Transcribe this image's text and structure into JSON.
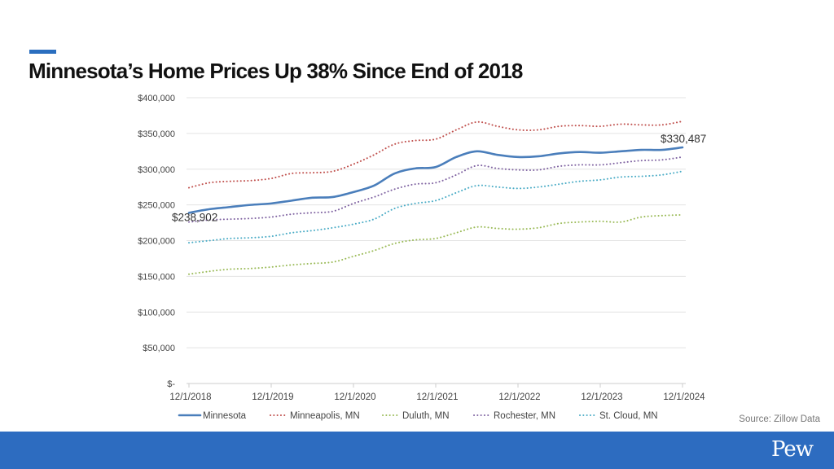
{
  "title": "Minnesota’s Home Prices Up 38% Since End of 2018",
  "source": "Source: Zillow Data",
  "logo": "Pew",
  "chart_data": {
    "type": "line",
    "title": "",
    "xlabel": "",
    "ylabel": "",
    "ylim": [
      0,
      400000
    ],
    "y_ticks": [
      "$-",
      "$50,000",
      "$100,000",
      "$150,000",
      "$200,000",
      "$250,000",
      "$300,000",
      "$350,000",
      "$400,000"
    ],
    "y_tick_values": [
      0,
      50000,
      100000,
      150000,
      200000,
      250000,
      300000,
      350000,
      400000
    ],
    "x_ticks": [
      "12/1/2018",
      "12/1/2019",
      "12/1/2020",
      "12/1/2021",
      "12/1/2022",
      "12/1/2023",
      "12/1/2024"
    ],
    "x": [
      "12/1/2018",
      "3/1/2019",
      "6/1/2019",
      "9/1/2019",
      "12/1/2019",
      "3/1/2020",
      "6/1/2020",
      "9/1/2020",
      "12/1/2020",
      "3/1/2021",
      "6/1/2021",
      "9/1/2021",
      "12/1/2021",
      "3/1/2022",
      "6/1/2022",
      "9/1/2022",
      "12/1/2022",
      "3/1/2023",
      "6/1/2023",
      "9/1/2023",
      "12/1/2023",
      "3/1/2024",
      "6/1/2024",
      "9/1/2024",
      "12/1/2024"
    ],
    "grid": true,
    "legend": "bottom",
    "series": [
      {
        "name": "Minnesota",
        "color": "#4a7ebb",
        "style": "solid",
        "values": [
          238902,
          244000,
          247000,
          250000,
          252000,
          256000,
          260000,
          261000,
          268000,
          277000,
          294000,
          301000,
          303000,
          317000,
          325000,
          320000,
          317000,
          318000,
          322000,
          324000,
          323000,
          325000,
          327000,
          327000,
          330487
        ]
      },
      {
        "name": "Minneapolis, MN",
        "color": "#c0504d",
        "style": "dotted",
        "values": [
          274000,
          281000,
          283000,
          284000,
          287000,
          294000,
          295000,
          297000,
          307000,
          320000,
          335000,
          340000,
          342000,
          355000,
          366000,
          360000,
          355000,
          355000,
          360000,
          361000,
          360000,
          363000,
          362000,
          362000,
          367000
        ]
      },
      {
        "name": "Duluth, MN",
        "color": "#9bbb59",
        "style": "dotted",
        "values": [
          153000,
          157000,
          160000,
          161000,
          163000,
          166000,
          168000,
          170000,
          178000,
          186000,
          196000,
          201000,
          203000,
          211000,
          219000,
          217000,
          216000,
          218000,
          224000,
          226000,
          227000,
          226000,
          233000,
          235000,
          236000
        ]
      },
      {
        "name": "Rochester, MN",
        "color": "#8064a2",
        "style": "dotted",
        "values": [
          226000,
          229000,
          230000,
          231000,
          233000,
          237000,
          239000,
          241000,
          252000,
          261000,
          272000,
          279000,
          281000,
          292000,
          305000,
          301000,
          299000,
          299000,
          304000,
          306000,
          306000,
          309000,
          312000,
          313000,
          317000
        ]
      },
      {
        "name": "St. Cloud, MN",
        "color": "#4bacc6",
        "style": "dotted",
        "values": [
          197000,
          200000,
          203000,
          204000,
          206000,
          211000,
          214000,
          218000,
          223000,
          230000,
          245000,
          252000,
          256000,
          267000,
          277000,
          275000,
          273000,
          275000,
          279000,
          283000,
          285000,
          289000,
          290000,
          292000,
          297000
        ]
      }
    ],
    "data_labels": {
      "start": "$238,902",
      "end": "$330,487"
    }
  }
}
